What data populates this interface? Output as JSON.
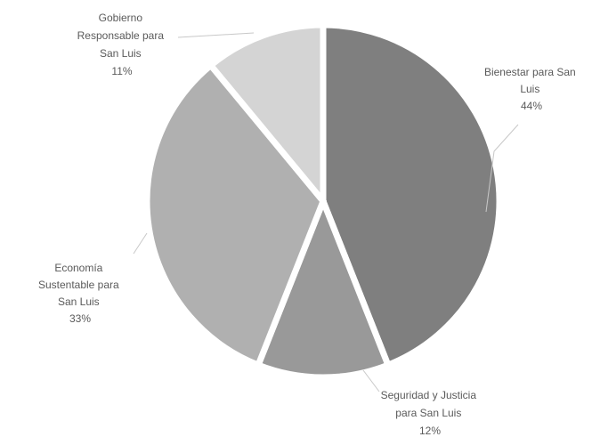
{
  "chart_data": {
    "type": "pie",
    "title": "",
    "slices": [
      {
        "label_lines": [
          "Bienestar para San",
          "Luis"
        ],
        "percent_label": "44%",
        "value": 44,
        "color": "#7f7f7f"
      },
      {
        "label_lines": [
          "Seguridad y Justicia",
          "para San Luis"
        ],
        "percent_label": "12%",
        "value": 12,
        "color": "#999999"
      },
      {
        "label_lines": [
          "Economía",
          "Sustentable para",
          "San Luis"
        ],
        "percent_label": "33%",
        "value": 33,
        "color": "#b0b0b0"
      },
      {
        "label_lines": [
          "Gobierno",
          "Responsable para",
          "San Luis"
        ],
        "percent_label": "11%",
        "value": 11,
        "color": "#d4d4d4"
      }
    ],
    "legend": "none",
    "labels": "outside-with-leader-lines"
  }
}
